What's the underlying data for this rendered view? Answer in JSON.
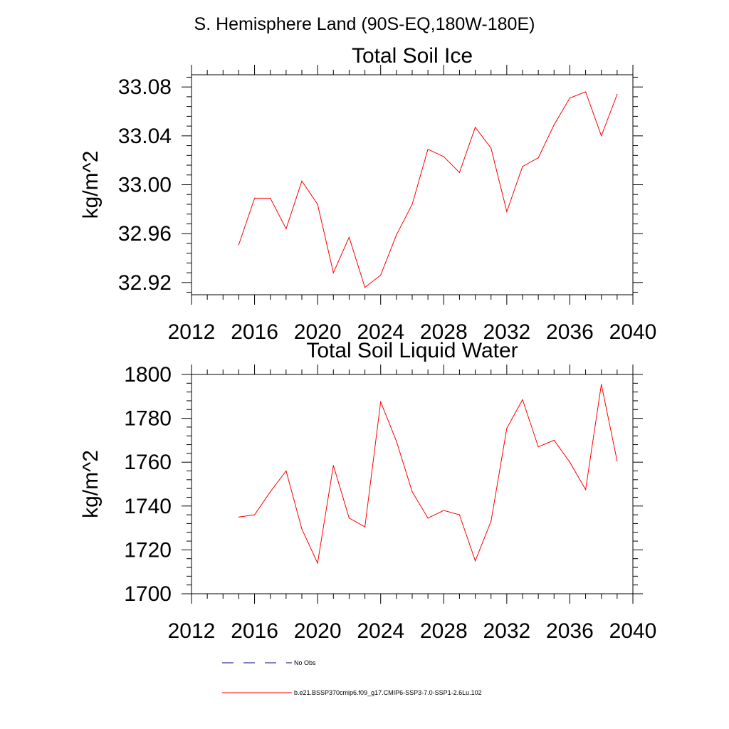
{
  "page_title": "S. Hemisphere Land (90S-EQ,180W-180E)",
  "chart_data": [
    {
      "type": "line",
      "title": "Total Soil Ice",
      "xlabel": "",
      "ylabel": "kg/m^2",
      "xlim": [
        2012,
        2040
      ],
      "ylim": [
        32.91,
        33.09
      ],
      "xticks": [
        2012,
        2016,
        2020,
        2024,
        2028,
        2032,
        2036,
        2040
      ],
      "xtick_labels": [
        "2012",
        "2016",
        "2020",
        "2024",
        "2028",
        "2032",
        "2036",
        "2040"
      ],
      "yticks": [
        32.92,
        32.96,
        33.0,
        33.04,
        33.08
      ],
      "ytick_labels": [
        "32.92",
        "32.96",
        "33.00",
        "33.04",
        "33.08"
      ],
      "grid": false,
      "series": [
        {
          "color": "#ff0000",
          "x": [
            2015,
            2016,
            2017,
            2018,
            2019,
            2020,
            2021,
            2022,
            2023,
            2024,
            2025,
            2026,
            2027,
            2028,
            2029,
            2030,
            2031,
            2032,
            2033,
            2034,
            2035,
            2036,
            2037,
            2038,
            2039
          ],
          "y": [
            32.951,
            32.989,
            32.989,
            32.964,
            33.003,
            32.984,
            32.928,
            32.957,
            32.916,
            32.926,
            32.959,
            32.984,
            33.029,
            33.023,
            33.01,
            33.047,
            33.03,
            32.978,
            33.015,
            33.022,
            33.049,
            33.071,
            33.076,
            33.04,
            33.074
          ]
        }
      ]
    },
    {
      "type": "line",
      "title": "Total Soil Liquid Water",
      "xlabel": "",
      "ylabel": "kg/m^2",
      "xlim": [
        2012,
        2040
      ],
      "ylim": [
        1700,
        1800
      ],
      "xticks": [
        2012,
        2016,
        2020,
        2024,
        2028,
        2032,
        2036,
        2040
      ],
      "xtick_labels": [
        "2012",
        "2016",
        "2020",
        "2024",
        "2028",
        "2032",
        "2036",
        "2040"
      ],
      "yticks": [
        1700,
        1720,
        1740,
        1760,
        1780,
        1800
      ],
      "ytick_labels": [
        "1700",
        "1720",
        "1740",
        "1760",
        "1780",
        "1800"
      ],
      "grid": false,
      "series": [
        {
          "color": "#ff0000",
          "x": [
            2015,
            2016,
            2017,
            2018,
            2019,
            2020,
            2021,
            2022,
            2023,
            2024,
            2025,
            2026,
            2027,
            2028,
            2029,
            2030,
            2031,
            2032,
            2033,
            2034,
            2035,
            2036,
            2037,
            2038,
            2039
          ],
          "y": [
            1735.0,
            1736.0,
            1746.5,
            1756.0,
            1729.5,
            1714.0,
            1758.5,
            1734.5,
            1730.5,
            1787.5,
            1769.5,
            1746.5,
            1734.5,
            1738.0,
            1736.0,
            1715.0,
            1733.0,
            1775.5,
            1788.5,
            1767.0,
            1770.0,
            1760.0,
            1747.5,
            1795.5,
            1760.5
          ]
        }
      ]
    }
  ],
  "legend": {
    "placement": "bottom",
    "items": [
      {
        "label": "No Obs",
        "style": "dashed",
        "color": "#000080"
      },
      {
        "label": "b.e21.BSSP370cmip6.f09_g17.CMIP6-SSP3-7.0-SSP1-2.6Lu.102",
        "style": "solid",
        "color": "#ff0000"
      }
    ]
  }
}
